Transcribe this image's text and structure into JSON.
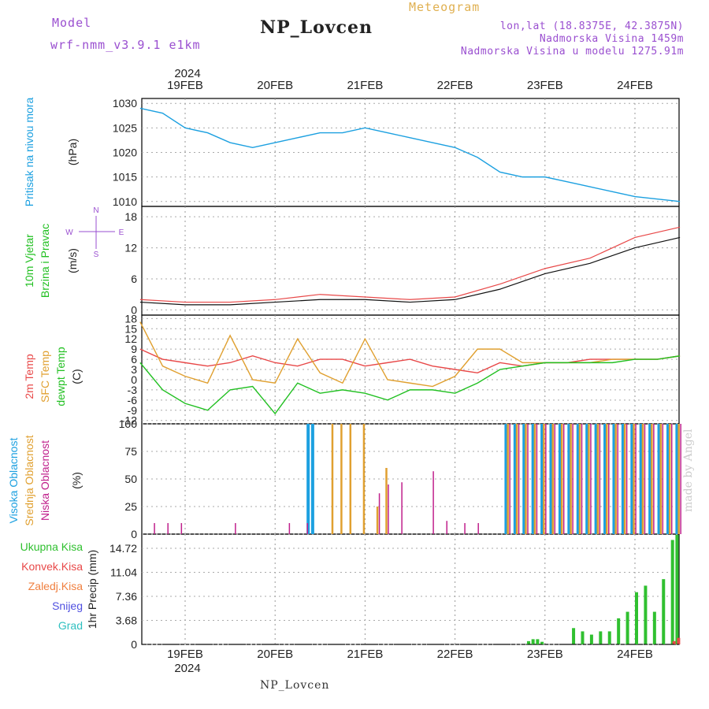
{
  "header": {
    "model_label": "Model",
    "model_name": "wrf-nmm_v3.9.1 e1km",
    "station": "NP_Lovcen",
    "meteogram": "Meteogram",
    "lonlat": "lon,lat (18.8375E, 42.3875N)",
    "elevation": "Nadmorska Visina 1459m",
    "model_elevation": "Nadmorska Visina u modelu 1275.91m"
  },
  "time_axis": {
    "year": "2024",
    "days": [
      "19FEB",
      "20FEB",
      "21FEB",
      "22FEB",
      "23FEB",
      "24FEB"
    ]
  },
  "footer": "NP_Lovcen",
  "watermark": "made by Angel",
  "colors": {
    "pressure": "#1ca0e0",
    "temp2m": "#e84848",
    "sfctemp": "#e0a030",
    "dewpt": "#22c022",
    "high_cloud": "#1ca0e0",
    "mid_cloud": "#e0a030",
    "low_cloud": "#c0208c",
    "precip_total": "#30c030",
    "precip_conv": "#e84848",
    "precip_frozen": "#f08040",
    "precip_snow": "#5050e0",
    "precip_graupel": "#30c0c0"
  },
  "chart_data": [
    {
      "type": "line",
      "panel": "pressure",
      "ylabels": [
        "Pritisak na nivou mora",
        "(hPa)"
      ],
      "yticks": [
        "1010",
        "1015",
        "1020",
        "1025",
        "1030"
      ],
      "ylim": [
        1009,
        1031
      ],
      "x_days": [
        0,
        0.25,
        0.5,
        0.75,
        1.0,
        1.25,
        1.5,
        1.75,
        2.0,
        2.25,
        2.5,
        2.75,
        3.0,
        3.25,
        3.5,
        3.75,
        4.0,
        4.25,
        4.5,
        4.75,
        5.0,
        5.25,
        5.5,
        5.75,
        6.0
      ],
      "series": [
        {
          "values": [
            1029,
            1028,
            1025,
            1024,
            1022,
            1021,
            1022,
            1023,
            1024,
            1024,
            1025,
            1024,
            1023,
            1022,
            1021,
            1019,
            1016,
            1015,
            1015,
            1014,
            1013,
            1012,
            1011,
            1010.5,
            1010
          ]
        }
      ]
    },
    {
      "type": "line",
      "panel": "wind",
      "ylabels": [
        "10m Vjetar",
        "Brzina i Pravac",
        "(m/s)"
      ],
      "yticks": [
        "0",
        "6",
        "12",
        "18"
      ],
      "ylim": [
        -1,
        20
      ],
      "compass": [
        "N",
        "W",
        "E",
        "S"
      ],
      "x_days": [
        0,
        0.5,
        1.0,
        1.5,
        2.0,
        2.5,
        3.0,
        3.5,
        4.0,
        4.5,
        5.0,
        5.5,
        6.0
      ],
      "series": [
        {
          "values": [
            2,
            1.5,
            1.5,
            2,
            3,
            2.5,
            2,
            2.5,
            5,
            8,
            10,
            14,
            16
          ]
        },
        {
          "values": [
            1.5,
            1,
            1,
            1.5,
            2,
            2,
            1.5,
            2,
            4,
            7,
            9,
            12,
            14
          ]
        }
      ]
    },
    {
      "type": "line",
      "panel": "temperature",
      "ylabels": [
        "2m Temp",
        "SFC Temp",
        "dewpt Temp",
        "(C)"
      ],
      "yticks": [
        "-12",
        "-9",
        "-6",
        "-3",
        "0",
        "3",
        "6",
        "9",
        "12",
        "15",
        "18"
      ],
      "ylim": [
        -13,
        19
      ],
      "x_days": [
        0,
        0.25,
        0.5,
        0.75,
        1.0,
        1.25,
        1.5,
        1.75,
        2.0,
        2.25,
        2.5,
        2.75,
        3.0,
        3.25,
        3.5,
        3.75,
        4.0,
        4.25,
        4.5,
        4.75,
        5.0,
        5.25,
        5.5,
        5.75,
        6.0
      ],
      "series": [
        {
          "name": "2m Temp",
          "values": [
            9,
            6,
            5,
            4,
            5,
            7,
            5,
            4,
            6,
            6,
            4,
            5,
            6,
            4,
            3,
            2,
            5,
            4,
            5,
            5,
            6,
            6,
            6,
            6,
            7
          ]
        },
        {
          "name": "SFC Temp",
          "values": [
            17,
            4,
            1,
            -1,
            13,
            0,
            -1,
            12,
            2,
            -1,
            12,
            0,
            -1,
            -2,
            1,
            9,
            9,
            5,
            5,
            5,
            5,
            6,
            6,
            6,
            7
          ]
        },
        {
          "name": "dewpt Temp",
          "values": [
            5,
            -3,
            -7,
            -9,
            -3,
            -2,
            -10,
            -1,
            -4,
            -3,
            -4,
            -6,
            -3,
            -3,
            -4,
            -1,
            3,
            4,
            5,
            5,
            5,
            5,
            6,
            6,
            7
          ]
        }
      ]
    },
    {
      "type": "bar",
      "panel": "clouds",
      "ylabels": [
        "Visoka Oblacnost",
        "Srednja Oblacnost",
        "Niska Oblacnost",
        "(%)"
      ],
      "yticks": [
        "0",
        "25",
        "50",
        "75",
        "100"
      ],
      "ylim": [
        0,
        100
      ],
      "x_days": [
        0.1,
        0.25,
        0.4,
        1.0,
        1.6,
        1.8,
        1.85,
        1.9,
        2.1,
        2.2,
        2.3,
        2.45,
        2.6,
        2.7,
        2.85,
        3.2,
        3.35,
        3.55,
        3.7,
        4.05,
        4.15,
        4.25,
        4.35,
        4.45,
        4.55,
        4.65,
        4.75,
        4.85,
        4.95,
        5.05,
        5.15,
        5.25,
        5.35,
        5.45,
        5.55,
        5.65,
        5.75,
        5.85,
        5.95
      ],
      "series": [
        {
          "name": "Visoka Oblacnost",
          "values": [
            0,
            0,
            0,
            0,
            0,
            0,
            100,
            100,
            0,
            0,
            0,
            0,
            0,
            0,
            0,
            0,
            0,
            0,
            0,
            100,
            100,
            100,
            100,
            100,
            100,
            100,
            100,
            100,
            100,
            100,
            100,
            100,
            100,
            100,
            100,
            100,
            100,
            100,
            100
          ]
        },
        {
          "name": "Srednja Oblacnost",
          "values": [
            0,
            0,
            0,
            0,
            0,
            0,
            0,
            0,
            100,
            100,
            100,
            100,
            25,
            60,
            0,
            0,
            0,
            0,
            0,
            100,
            100,
            100,
            100,
            100,
            100,
            100,
            100,
            100,
            100,
            100,
            100,
            100,
            100,
            100,
            100,
            100,
            100,
            100,
            100
          ]
        },
        {
          "name": "Niska Oblacnost",
          "values": [
            10,
            10,
            10,
            10,
            10,
            10,
            0,
            0,
            0,
            0,
            0,
            0,
            37,
            45,
            47,
            57,
            12,
            10,
            10,
            100,
            100,
            100,
            100,
            100,
            100,
            100,
            100,
            100,
            100,
            100,
            100,
            100,
            100,
            100,
            100,
            100,
            100,
            100,
            100
          ]
        }
      ]
    },
    {
      "type": "bar",
      "panel": "precip",
      "ylabels": [
        "Ukupna Kisa",
        "Konvek.Kisa",
        "Zaledj.Kisa",
        "Snijeg",
        "Grad",
        "1hr Precip (mm)"
      ],
      "yticks": [
        "0",
        "3.68",
        "7.36",
        "11.04",
        "14.72"
      ],
      "ylim": [
        0,
        16.9
      ],
      "x_days": [
        4.3,
        4.35,
        4.4,
        4.45,
        4.8,
        4.9,
        5.0,
        5.1,
        5.2,
        5.3,
        5.4,
        5.5,
        5.6,
        5.7,
        5.8,
        5.9,
        5.95
      ],
      "series": [
        {
          "name": "Ukupna Kisa",
          "values": [
            0.5,
            0.8,
            0.8,
            0.4,
            2.5,
            2,
            1.5,
            2,
            2,
            4,
            5,
            8,
            9,
            5,
            10,
            16,
            16.8
          ]
        },
        {
          "name": "Konvek.Kisa",
          "values": [
            0,
            0,
            0,
            0,
            0,
            0,
            0,
            0,
            0,
            0,
            0,
            0,
            0,
            0,
            0,
            0.5,
            1
          ]
        }
      ]
    }
  ]
}
